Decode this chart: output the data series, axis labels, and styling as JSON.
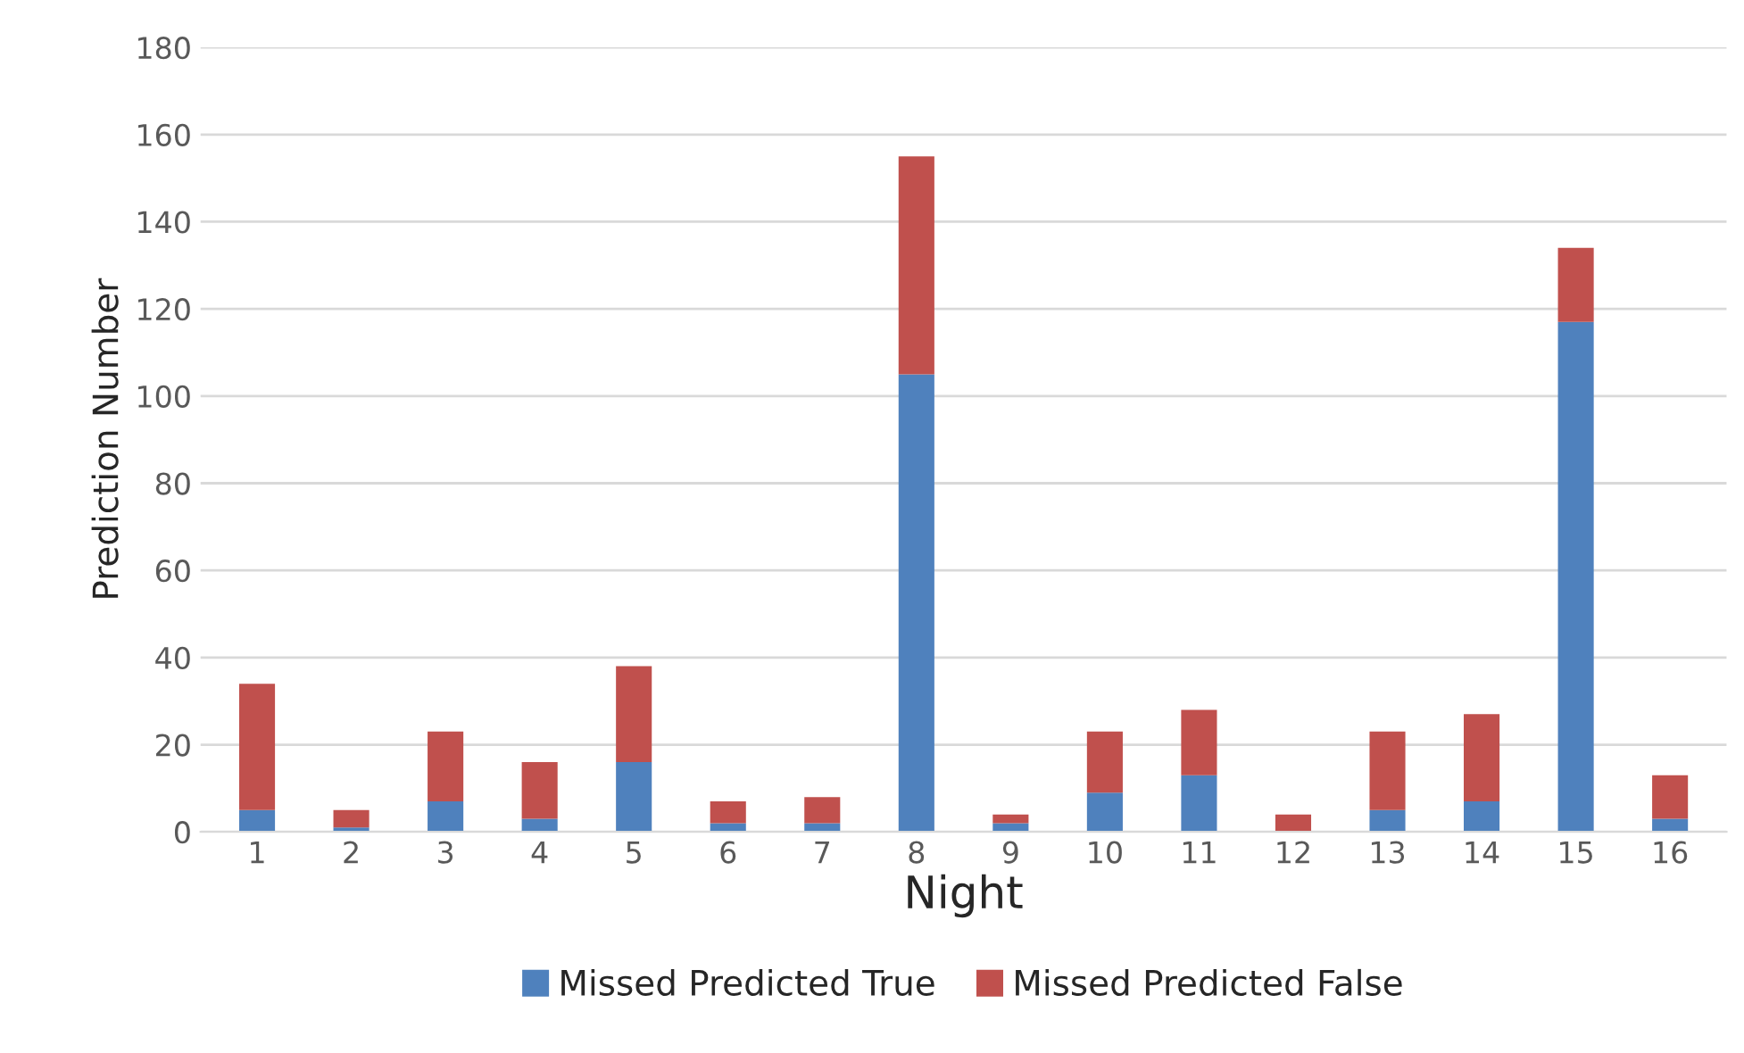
{
  "chart_data": {
    "type": "bar",
    "stacked": true,
    "xlabel": "Night",
    "ylabel": "Prediction Number",
    "categories": [
      "1",
      "2",
      "3",
      "4",
      "5",
      "6",
      "7",
      "8",
      "9",
      "10",
      "11",
      "12",
      "13",
      "14",
      "15",
      "16"
    ],
    "series": [
      {
        "name": "Missed Predicted True",
        "color": "#4f81bd",
        "values": [
          5,
          1,
          7,
          3,
          16,
          2,
          2,
          105,
          2,
          9,
          13,
          0,
          5,
          7,
          117,
          3
        ]
      },
      {
        "name": "Missed Predicted False",
        "color": "#c0504d",
        "values": [
          29,
          4,
          16,
          13,
          22,
          5,
          6,
          50,
          2,
          14,
          15,
          4,
          18,
          20,
          17,
          10
        ]
      }
    ],
    "ylim": [
      0,
      180
    ],
    "yticks": [
      0,
      20,
      40,
      60,
      80,
      100,
      120,
      140,
      160,
      180
    ],
    "grid": "y",
    "legend": "bottom"
  }
}
